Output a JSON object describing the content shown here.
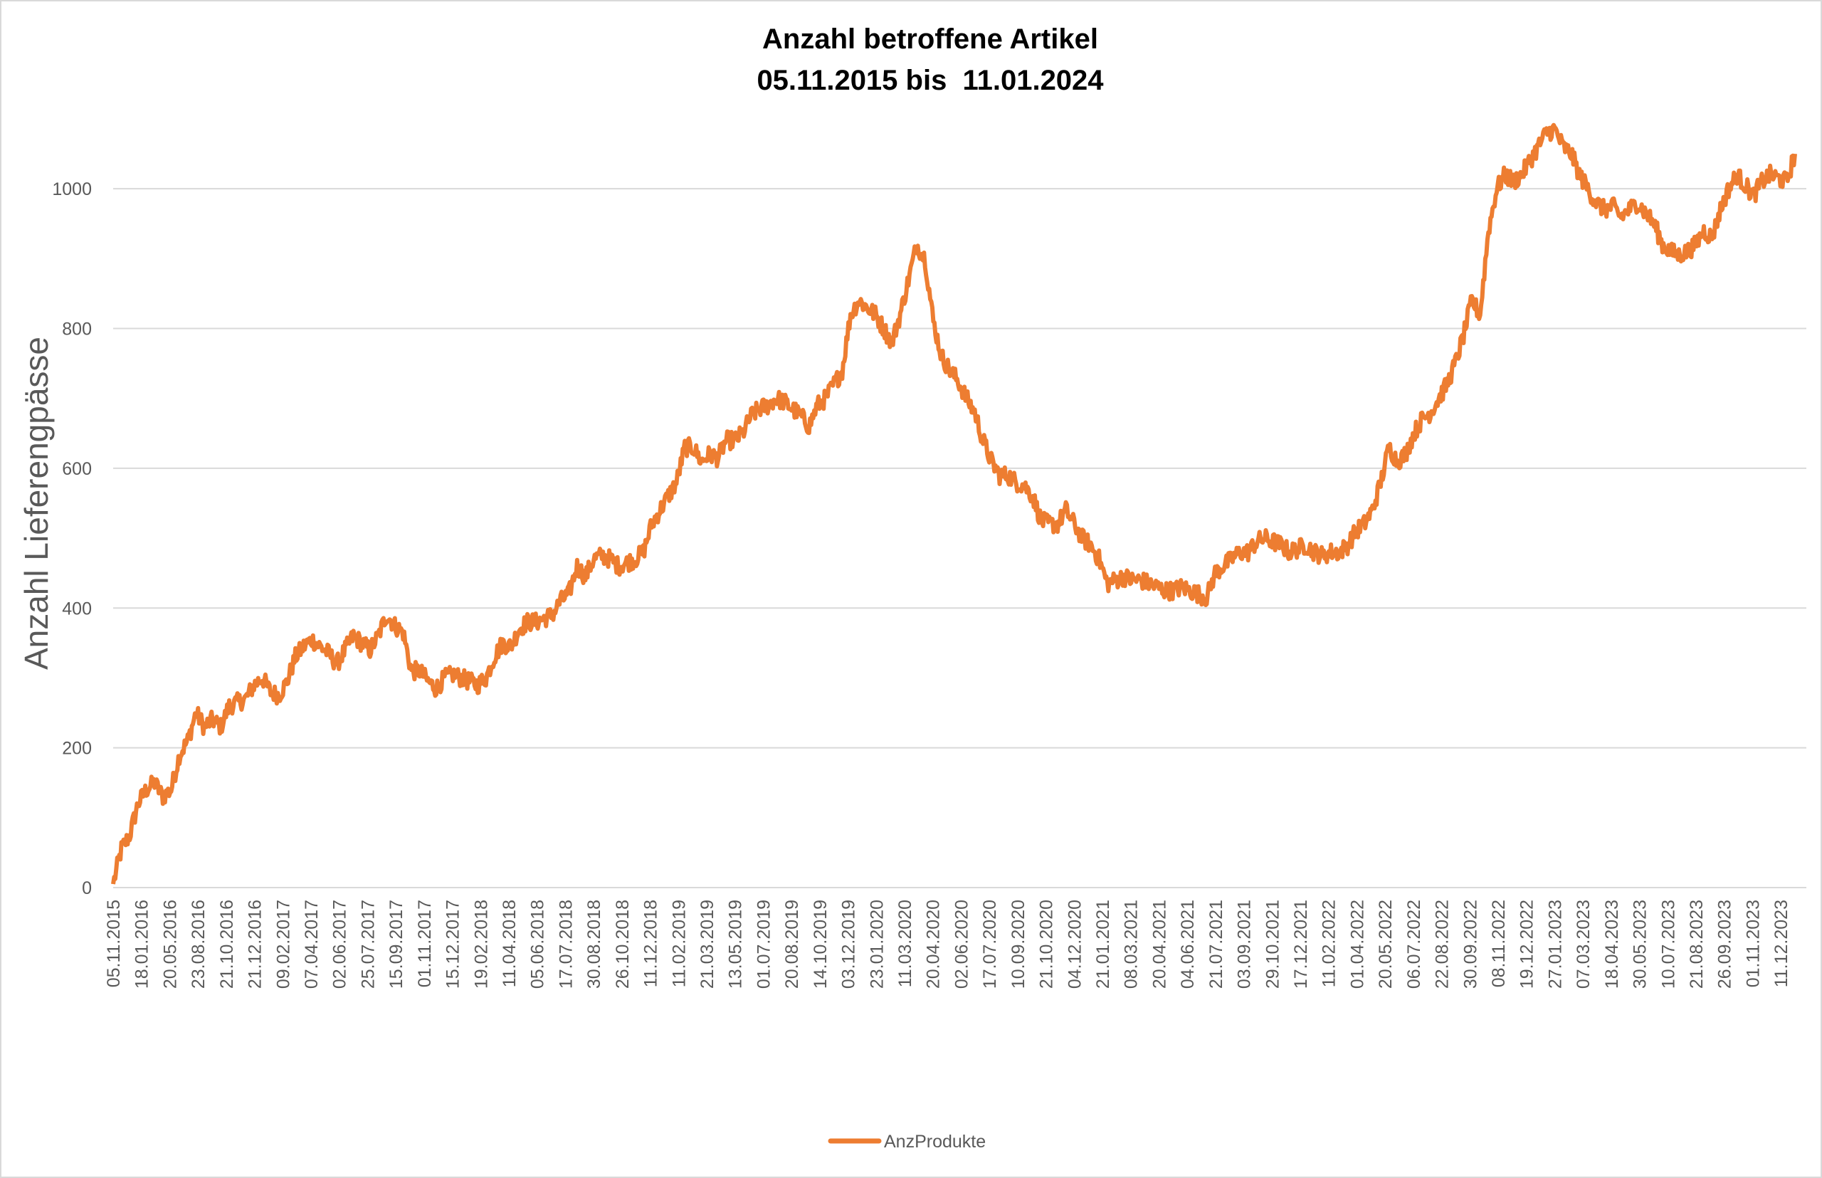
{
  "chart_data": {
    "type": "line",
    "title": "Anzahl betroffene Artikel",
    "subtitle": "05.11.2015 bis  11.01.2024",
    "xlabel": "",
    "ylabel": "Anzahl Lieferengpässe",
    "ylim": [
      0,
      1100
    ],
    "yticks": [
      "0",
      "200",
      "400",
      "600",
      "800",
      "1000"
    ],
    "grid": true,
    "legend_position": "bottom",
    "series_color": "#ED7D31",
    "x_tick_labels": [
      "05.11.2015",
      "18.01.2016",
      "20.05.2016",
      "23.08.2016",
      "21.10.2016",
      "21.12.2016",
      "09.02.2017",
      "07.04.2017",
      "02.06.2017",
      "25.07.2017",
      "15.09.2017",
      "01.11.2017",
      "15.12.2017",
      "19.02.2018",
      "11.04.2018",
      "05.06.2018",
      "17.07.2018",
      "30.08.2018",
      "26.10.2018",
      "11.12.2018",
      "11.02.2019",
      "21.03.2019",
      "13.05.2019",
      "01.07.2019",
      "20.08.2019",
      "14.10.2019",
      "03.12.2019",
      "23.01.2020",
      "11.03.2020",
      "20.04.2020",
      "02.06.2020",
      "17.07.2020",
      "10.09.2020",
      "21.10.2020",
      "04.12.2020",
      "21.01.2021",
      "08.03.2021",
      "20.04.2021",
      "04.06.2021",
      "21.07.2021",
      "03.09.2021",
      "29.10.2021",
      "17.12.2021",
      "11.02.2022",
      "01.04.2022",
      "20.05.2022",
      "06.07.2022",
      "22.08.2022",
      "30.09.2022",
      "08.11.2022",
      "19.12.2022",
      "27.01.2023",
      "07.03.2023",
      "18.04.2023",
      "30.05.2023",
      "10.07.2023",
      "21.08.2023",
      "26.09.2023",
      "01.11.2023",
      "11.12.2023"
    ],
    "series": [
      {
        "name": "AnzProdukte",
        "values": [
          5,
          55,
          75,
          120,
          140,
          150,
          130,
          140,
          190,
          210,
          250,
          230,
          240,
          230,
          260,
          265,
          270,
          290,
          300,
          280,
          275,
          295,
          330,
          345,
          355,
          345,
          335,
          320,
          340,
          360,
          350,
          340,
          360,
          390,
          375,
          365,
          310,
          310,
          295,
          285,
          300,
          305,
          300,
          295,
          290,
          300,
          330,
          350,
          345,
          370,
          380,
          380,
          385,
          390,
          410,
          420,
          460,
          445,
          470,
          475,
          470,
          460,
          465,
          470,
          480,
          520,
          540,
          560,
          580,
          630,
          630,
          610,
          620,
          615,
          640,
          640,
          650,
          675,
          685,
          690,
          700,
          695,
          685,
          675,
          660,
          690,
          700,
          720,
          740,
          820,
          840,
          830,
          820,
          800,
          780,
          820,
          870,
          920,
          900,
          810,
          760,
          740,
          725,
          700,
          680,
          640,
          610,
          590,
          590,
          580,
          575,
          560,
          525,
          520,
          520,
          540,
          520,
          500,
          490,
          470,
          435,
          440,
          445,
          440,
          440,
          435,
          430,
          425,
          425,
          430,
          425,
          420,
          415,
          450,
          460,
          470,
          480,
          480,
          495,
          500,
          495,
          490,
          480,
          485,
          490,
          480,
          475,
          480,
          480,
          490,
          510,
          520,
          540,
          580,
          630,
          610,
          620,
          650,
          670,
          680,
          700,
          720,
          750,
          790,
          840,
          820,
          940,
          1000,
          1020,
          1010,
          1020,
          1040,
          1060,
          1080,
          1085,
          1060,
          1050,
          1020,
          1000,
          980,
          970,
          975,
          960,
          970,
          980,
          965,
          950,
          920,
          910,
          905,
          910,
          920,
          940,
          930,
          970,
          1000,
          1020,
          1005,
          990,
          1010,
          1020,
          1015,
          1010,
          1050
        ]
      }
    ]
  }
}
